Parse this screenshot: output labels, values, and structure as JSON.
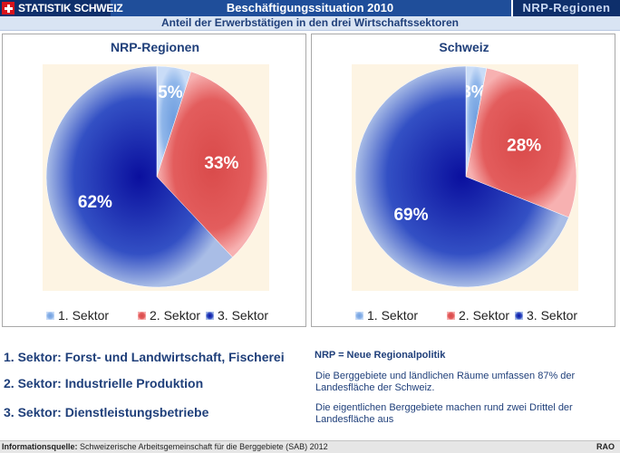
{
  "header": {
    "brand": "STATISTIK SCHWEIZ",
    "title": "Beschäftigungssituation 2010",
    "region_tab": "NRP-Regionen",
    "subtitle": "Anteil der Erwerbstätigen in den drei Wirtschaftssektoren"
  },
  "colors": {
    "sector1": "#8fb6ea",
    "sector2": "#e35d5d",
    "sector3": "#1b2fb8",
    "header": "#1f4e9a"
  },
  "chart_data": [
    {
      "type": "pie",
      "title": "NRP-Regionen",
      "categories": [
        "1. Sektor",
        "2. Sektor",
        "3. Sektor"
      ],
      "values": [
        5,
        33,
        62
      ],
      "labels": [
        "5%",
        "33%",
        "62%"
      ],
      "legend_position": "bottom"
    },
    {
      "type": "pie",
      "title": "Schweiz",
      "categories": [
        "1. Sektor",
        "2. Sektor",
        "3. Sektor"
      ],
      "values": [
        3,
        28,
        69
      ],
      "labels": [
        "3%",
        "28%",
        "69%"
      ],
      "legend_position": "bottom"
    }
  ],
  "definitions": {
    "sector1": "1. Sektor: Forst- und Landwirtschaft, Fischerei",
    "sector2": "2. Sektor: Industrielle Produktion",
    "sector3": "3. Sektor: Dienstleistungsbetriebe"
  },
  "notes": {
    "title": "NRP = Neue Regionalpolitik",
    "line1": "Die Berggebiete und ländlichen Räume umfassen 87% der Landesfläche der Schweiz.",
    "line2": "Die eigentlichen Berggebiete machen rund zwei Drittel der Landesfläche aus"
  },
  "footer": {
    "label": "Informationsquelle:",
    "source": "Schweizerische Arbeitsgemeinschaft für die Berggebiete (SAB) 2012",
    "code": "RAO"
  }
}
